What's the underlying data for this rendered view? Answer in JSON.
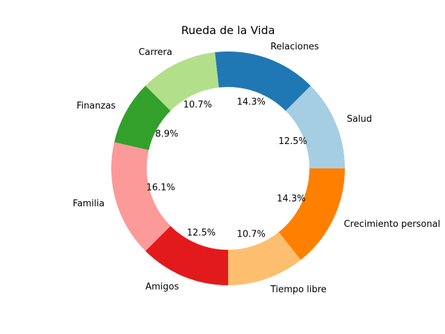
{
  "chart_data": {
    "type": "pie",
    "variant": "donut",
    "title": "Rueda de la Vida",
    "start_angle_deg": 0,
    "direction": "counterclockwise",
    "slices": [
      {
        "label": "Salud",
        "value": 12.5,
        "pct_text": "12.5%",
        "color": "#a6cee3"
      },
      {
        "label": "Relaciones",
        "value": 14.3,
        "pct_text": "14.3%",
        "color": "#1f78b4"
      },
      {
        "label": "Carrera",
        "value": 10.7,
        "pct_text": "10.7%",
        "color": "#b2df8a"
      },
      {
        "label": "Finanzas",
        "value": 8.9,
        "pct_text": "8.9%",
        "color": "#33a02c"
      },
      {
        "label": "Familia",
        "value": 16.1,
        "pct_text": "16.1%",
        "color": "#fb9a99"
      },
      {
        "label": "Amigos",
        "value": 12.5,
        "pct_text": "12.5%",
        "color": "#e31a1c"
      },
      {
        "label": "Tiempo libre",
        "value": 10.7,
        "pct_text": "10.7%",
        "color": "#fdbf6f"
      },
      {
        "label": "Crecimiento personal",
        "value": 14.3,
        "pct_text": "14.3%",
        "color": "#ff7f00"
      }
    ]
  }
}
